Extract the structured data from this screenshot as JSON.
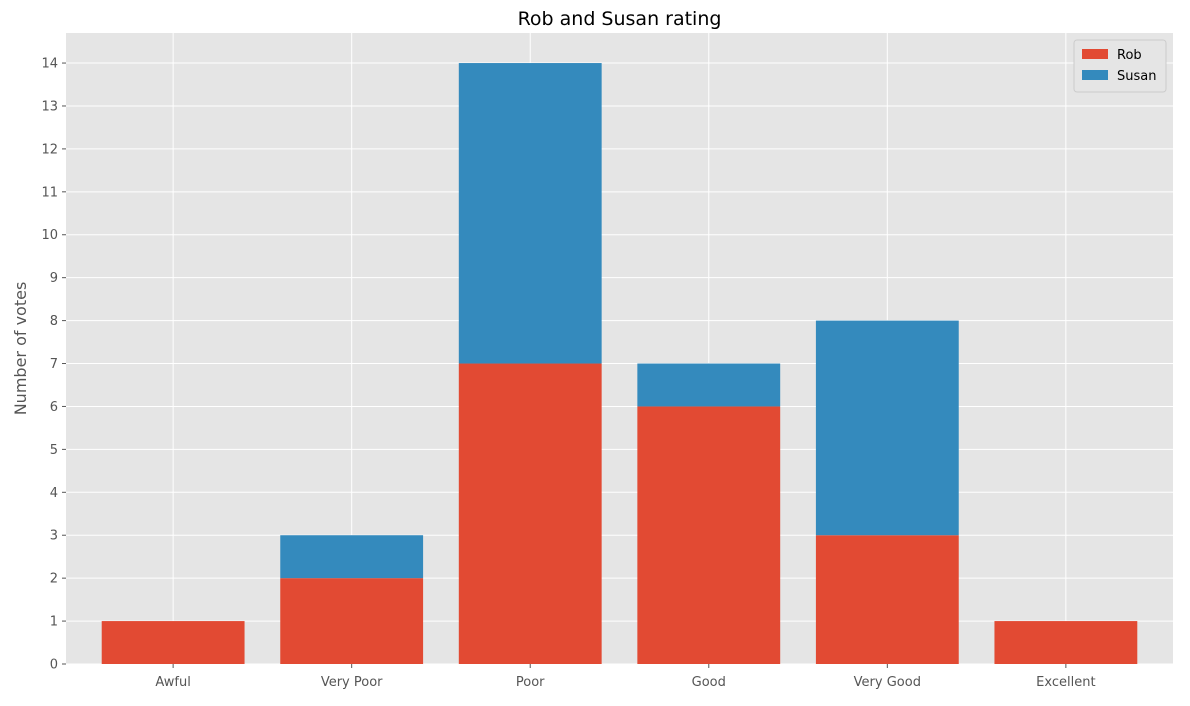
{
  "chart_data": {
    "type": "bar",
    "stacked": true,
    "title": "Rob and Susan rating",
    "xlabel": "",
    "ylabel": "Number of votes",
    "categories": [
      "Awful",
      "Very Poor",
      "Poor",
      "Good",
      "Very Good",
      "Excellent"
    ],
    "series": [
      {
        "name": "Rob",
        "color": "#E24A33",
        "values": [
          1,
          2,
          7,
          6,
          3,
          1
        ]
      },
      {
        "name": "Susan",
        "color": "#348ABD",
        "values": [
          0,
          1,
          7,
          1,
          5,
          0
        ]
      }
    ],
    "ylim": [
      0,
      14.7
    ],
    "yticks": [
      0,
      1,
      2,
      3,
      4,
      5,
      6,
      7,
      8,
      9,
      10,
      11,
      12,
      13,
      14
    ],
    "grid": true,
    "legend_position": "top-right",
    "plot_background": "#E5E5E5",
    "grid_color": "#FFFFFF"
  }
}
